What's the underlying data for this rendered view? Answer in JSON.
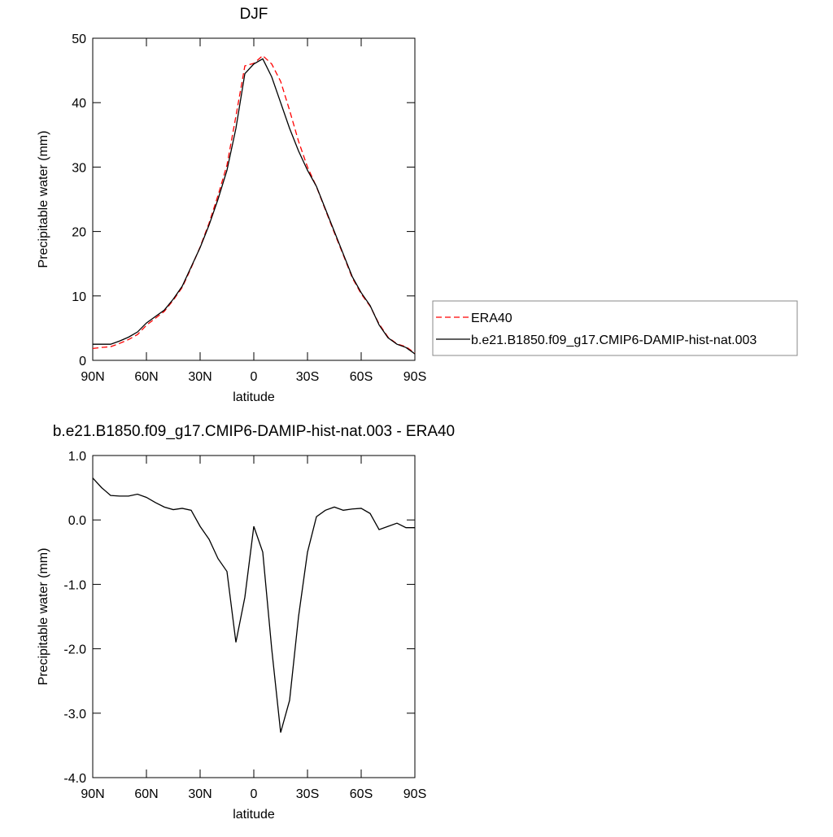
{
  "chart_data": [
    {
      "type": "line",
      "title": "DJF",
      "ylabel": "Precipitable water (mm)",
      "xlabel": "latitude",
      "x": [
        90,
        85,
        80,
        75,
        70,
        65,
        60,
        55,
        50,
        45,
        40,
        35,
        30,
        25,
        20,
        15,
        10,
        5,
        0,
        -5,
        -10,
        -15,
        -20,
        -25,
        -30,
        -35,
        -40,
        -45,
        -50,
        -55,
        -60,
        -65,
        -70,
        -75,
        -80,
        -85,
        -90
      ],
      "xlim": [
        90,
        -90
      ],
      "xticks": [
        {
          "value": 90,
          "label": "90N"
        },
        {
          "value": 60,
          "label": "60N"
        },
        {
          "value": 30,
          "label": "30N"
        },
        0,
        {
          "value": -30,
          "label": "30S"
        },
        {
          "value": -60,
          "label": "60S"
        },
        {
          "value": -90,
          "label": "90S"
        }
      ],
      "ylim": [
        0,
        50
      ],
      "yticks": [
        0,
        10,
        20,
        30,
        40,
        50
      ],
      "legend": "right",
      "series": [
        {
          "name": "ERA40",
          "color": "#ff0000",
          "dashed": true,
          "values": [
            1.85,
            2.0,
            2.12,
            2.63,
            3.23,
            4.0,
            5.45,
            6.53,
            7.6,
            9.34,
            11.32,
            14.35,
            17.6,
            21.3,
            25.6,
            30.3,
            37.9,
            45.7,
            46.1,
            47.3,
            46.0,
            43.3,
            38.8,
            34.0,
            30.0,
            26.95,
            23.35,
            19.8,
            16.35,
            12.83,
            10.32,
            8.4,
            5.65,
            3.6,
            2.55,
            2.12,
            1.12
          ]
        },
        {
          "name": "b.e21.B1850.f09_g17.CMIP6-DAMIP-hist-nat.003",
          "color": "#000000",
          "dashed": false,
          "values": [
            2.5,
            2.5,
            2.5,
            3.0,
            3.6,
            4.4,
            5.8,
            6.8,
            7.8,
            9.5,
            11.5,
            14.5,
            17.5,
            21.0,
            25.0,
            29.5,
            36.0,
            44.5,
            46.0,
            46.8,
            44.0,
            40.0,
            36.0,
            32.5,
            29.5,
            27.0,
            23.5,
            20.0,
            16.5,
            13.0,
            10.5,
            8.5,
            5.5,
            3.5,
            2.5,
            2.0,
            1.0
          ]
        }
      ]
    },
    {
      "type": "line",
      "title": "b.e21.B1850.f09_g17.CMIP6-DAMIP-hist-nat.003 - ERA40",
      "ylabel": "Precipitable water (mm)",
      "xlabel": "latitude",
      "x": [
        90,
        85,
        80,
        75,
        70,
        65,
        60,
        55,
        50,
        45,
        40,
        35,
        30,
        25,
        20,
        15,
        10,
        5,
        0,
        -5,
        -10,
        -15,
        -20,
        -25,
        -30,
        -35,
        -40,
        -45,
        -50,
        -55,
        -60,
        -65,
        -70,
        -75,
        -80,
        -85,
        -90
      ],
      "xlim": [
        90,
        -90
      ],
      "xticks": [
        {
          "value": 90,
          "label": "90N"
        },
        {
          "value": 60,
          "label": "60N"
        },
        {
          "value": 30,
          "label": "30N"
        },
        0,
        {
          "value": -30,
          "label": "30S"
        },
        {
          "value": -60,
          "label": "60S"
        },
        {
          "value": -90,
          "label": "90S"
        }
      ],
      "ylim": [
        -4,
        1
      ],
      "yticks": [
        {
          "value": -4,
          "label": "-4.0"
        },
        {
          "value": -3,
          "label": "-3.0"
        },
        {
          "value": -2,
          "label": "-2.0"
        },
        {
          "value": -1,
          "label": "-1.0"
        },
        {
          "value": 0,
          "label": "0.0"
        },
        {
          "value": 1,
          "label": "1.0"
        }
      ],
      "series": [
        {
          "color": "#000000",
          "dashed": false,
          "values": [
            0.65,
            0.5,
            0.38,
            0.37,
            0.37,
            0.4,
            0.35,
            0.27,
            0.2,
            0.16,
            0.18,
            0.15,
            -0.1,
            -0.3,
            -0.6,
            -0.8,
            -1.9,
            -1.2,
            -0.1,
            -0.5,
            -2.0,
            -3.3,
            -2.8,
            -1.5,
            -0.5,
            0.05,
            0.15,
            0.2,
            0.15,
            0.17,
            0.18,
            0.1,
            -0.15,
            -0.1,
            -0.05,
            -0.12,
            -0.12
          ]
        }
      ]
    }
  ]
}
